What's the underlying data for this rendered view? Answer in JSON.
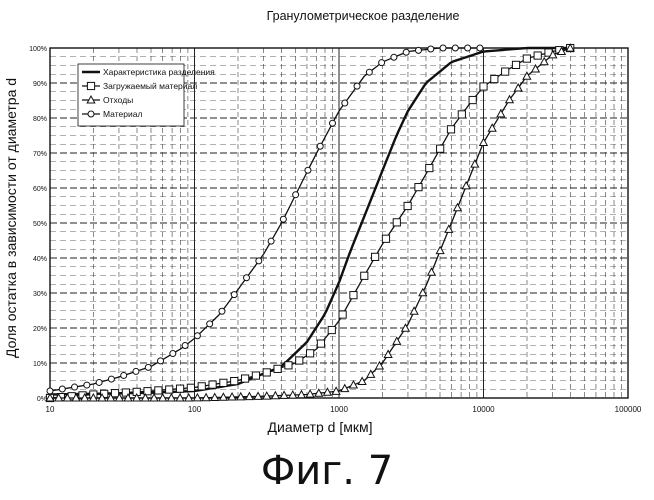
{
  "chart_data": {
    "type": "line",
    "title": "Гранулометрическое разделение",
    "xlabel": "Диаметр d [мкм]",
    "ylabel": "Доля остатка в зависимости от диаметра d",
    "x_scale": "log",
    "xlim": [
      10,
      100000
    ],
    "ylim": [
      0,
      100
    ],
    "x_ticks": [
      10,
      100,
      1000,
      10000,
      100000
    ],
    "x_tick_labels": [
      "10",
      "100",
      "1000",
      "10000",
      "100000"
    ],
    "y_ticks": [
      0,
      10,
      20,
      30,
      40,
      50,
      60,
      70,
      80,
      90,
      100
    ],
    "y_tick_labels": [
      "0%",
      "10%",
      "20%",
      "30%",
      "40%",
      "50%",
      "60%",
      "70%",
      "80%",
      "90%",
      "100%"
    ],
    "grid": true,
    "legend_position": "top-left",
    "series": [
      {
        "name": "Характеристика разделения",
        "marker": "none",
        "x": [
          10,
          50,
          100,
          200,
          400,
          600,
          800,
          1000,
          1200,
          1500,
          2000,
          2500,
          3000,
          4000,
          6000,
          10000,
          20000,
          40000
        ],
        "y": [
          1,
          1.5,
          2,
          4,
          9,
          16,
          24,
          33,
          42,
          52,
          65,
          75,
          82,
          90,
          96,
          99,
          100,
          100
        ]
      },
      {
        "name": "Загружаемый материал",
        "marker": "square",
        "x": [
          10,
          20,
          50,
          100,
          200,
          300,
          500,
          700,
          1000,
          1500,
          2000,
          3000,
          4000,
          6000,
          8000,
          10000,
          15000,
          20000,
          30000,
          40000
        ],
        "y": [
          0,
          1,
          2,
          3,
          5,
          7,
          10,
          14,
          22,
          35,
          44,
          55,
          64,
          77,
          84,
          89,
          94,
          97,
          99,
          100
        ]
      },
      {
        "name": "Отходы",
        "marker": "triangle",
        "x": [
          10,
          50,
          100,
          300,
          600,
          1000,
          1500,
          2000,
          3000,
          4000,
          5000,
          6000,
          8000,
          10000,
          15000,
          20000,
          30000,
          40000
        ],
        "y": [
          0,
          0,
          0,
          0.5,
          1,
          2,
          5,
          10,
          21,
          32,
          42,
          50,
          63,
          73,
          85,
          92,
          98,
          100
        ]
      },
      {
        "name": "Материал",
        "marker": "circle",
        "x": [
          10,
          20,
          30,
          50,
          80,
          100,
          150,
          200,
          300,
          400,
          500,
          700,
          1000,
          1500,
          2000,
          3000,
          5000,
          10000
        ],
        "y": [
          2,
          4,
          6,
          9,
          14,
          17,
          24,
          31,
          41,
          50,
          58,
          70,
          82,
          92,
          96,
          99,
          100,
          100
        ]
      }
    ]
  },
  "caption": "Фиг. 7",
  "colors": {
    "line": "#111111",
    "grid": "#222222",
    "background": "#ffffff"
  }
}
